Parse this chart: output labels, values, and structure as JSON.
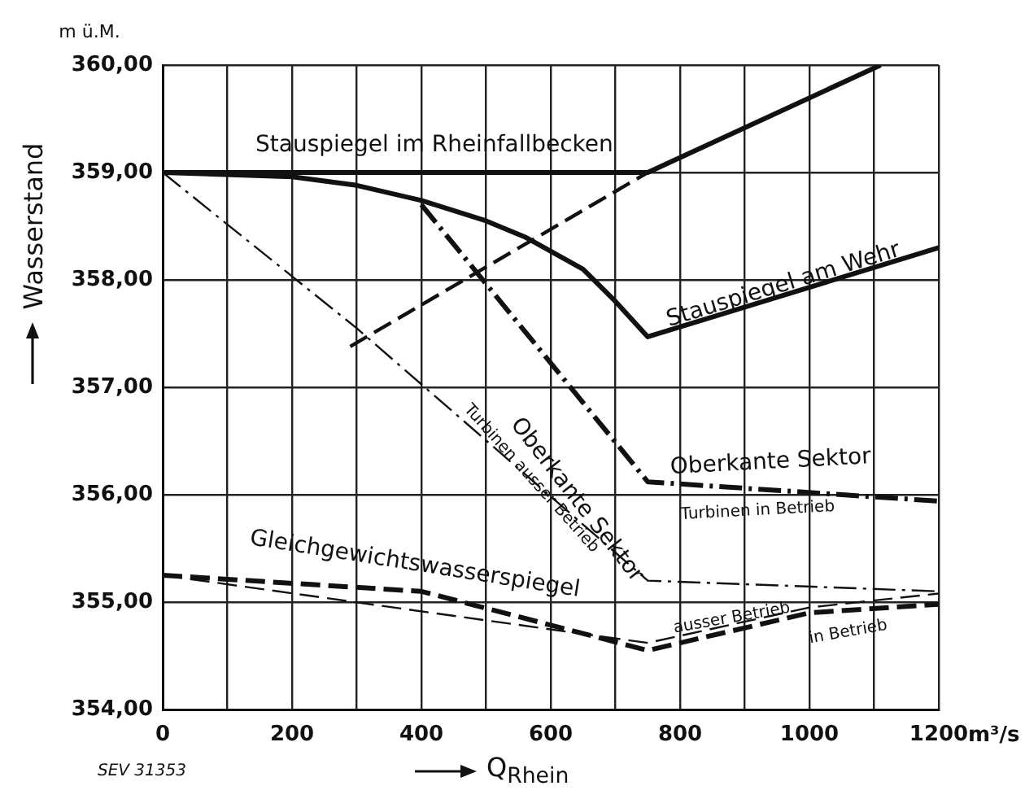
{
  "chart_data": {
    "type": "line",
    "xlabel": "Q$_{Rhein}$",
    "ylabel": "Wasserstand",
    "xlim": [
      0,
      1200
    ],
    "ylim": [
      354,
      360
    ],
    "xticks": [
      0,
      {
        "value": 100,
        "label": null
      },
      200,
      {
        "value": 300,
        "label": null
      },
      400,
      {
        "value": 500,
        "label": null
      },
      600,
      {
        "value": 700,
        "label": null
      },
      800,
      {
        "value": 900,
        "label": null
      },
      1000,
      {
        "value": 1100,
        "label": null
      },
      1200
    ],
    "yticks": [
      {
        "value": 354,
        "label": "354,00"
      },
      {
        "value": 355,
        "label": "355,00"
      },
      {
        "value": 356,
        "label": "356,00"
      },
      {
        "value": 357,
        "label": "357,00"
      },
      {
        "value": 358,
        "label": "358,00"
      },
      {
        "value": 359,
        "label": "359,00"
      },
      {
        "value": 360,
        "label": "360,00"
      }
    ],
    "grid": true,
    "legend": false,
    "marker": "none",
    "series": [
      {
        "color": "#111111",
        "line_style": "solid",
        "x": [
          0,
          750,
          1110
        ],
        "values": [
          359,
          359,
          360
        ]
      },
      {
        "color": "#111111",
        "line_style": "dashed",
        "x": [
          290,
          750
        ],
        "values": [
          357.38,
          359
        ]
      },
      {
        "color": "#111111",
        "line_style": "solid",
        "x": [
          0,
          200,
          300,
          400,
          500,
          560,
          650,
          700,
          750,
          1200
        ],
        "values": [
          359,
          358.96,
          358.88,
          358.74,
          358.55,
          358.4,
          358.1,
          357.8,
          357.47,
          358.3
        ]
      },
      {
        "color": "#111111",
        "line_style": "dashdot",
        "x": [
          400,
          750,
          1200
        ],
        "values": [
          358.7,
          356.12,
          355.94
        ]
      },
      {
        "color": "#111111",
        "line_style": "dashdot",
        "x": [
          0,
          300,
          750,
          1200
        ],
        "values": [
          359,
          357.55,
          355.2,
          355.1
        ]
      },
      {
        "color": "#111111",
        "line_style": "dashed",
        "x": [
          0,
          400,
          750,
          1000,
          1200
        ],
        "values": [
          355.25,
          355.1,
          354.55,
          354.9,
          354.98
        ]
      },
      {
        "color": "#111111",
        "line_style": "dashed",
        "x": [
          0,
          750,
          1000,
          1200
        ],
        "values": [
          355.25,
          354.62,
          354.95,
          355.08
        ]
      }
    ],
    "annotations": [
      "Stauspiegel im Rheinfallbecken",
      "Stauspiegel am Wehr",
      "Oberkante Sektor",
      "Turbinen in Betrieb",
      "Oberkante Sektor",
      "Turbinen ausser Betrieb",
      "Gleichgewichtswasserspiegel",
      "ausser Betrieb",
      "in Betrieb",
      "m ü.M.",
      "m³/s",
      "SEV 31353"
    ]
  }
}
